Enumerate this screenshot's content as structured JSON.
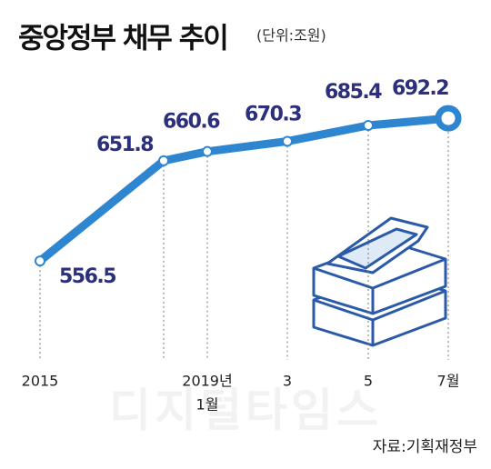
{
  "chart_data": {
    "type": "line",
    "title": "중앙정부 채무 추이",
    "subtitle": "(단위:조원)",
    "categories": [
      "2015",
      null,
      "2019년",
      "3",
      "5",
      "7월"
    ],
    "x_sublabels": [
      null,
      null,
      "1월",
      null,
      null,
      null
    ],
    "series": [
      {
        "name": null,
        "color": "#2f86d0",
        "values": [
          556.5,
          651.8,
          660.6,
          670.3,
          685.4,
          692.2
        ]
      }
    ],
    "watermark": "디지털타임스",
    "source": "자료:기획재정부"
  }
}
